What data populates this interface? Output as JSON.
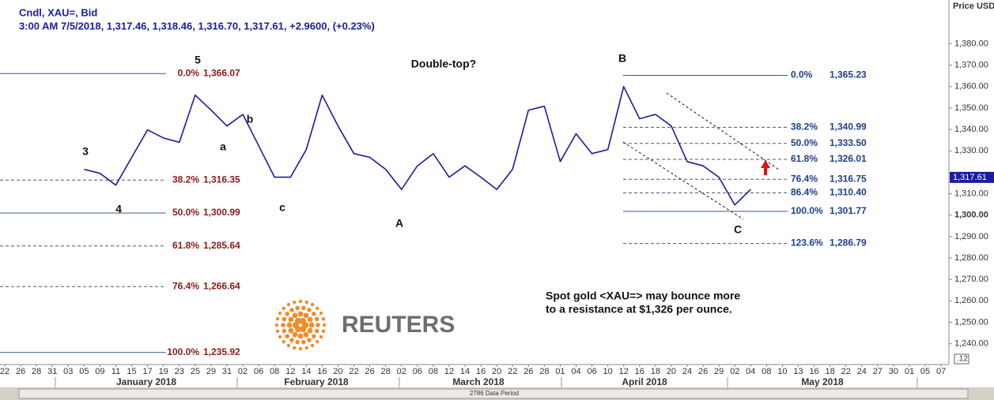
{
  "chart_data": {
    "type": "line",
    "title": "Cndl, XAU=, Bid",
    "subtitle": "3:00 AM 7/5/2018, 1,317.46, 1,318.46, 1,316.70, 1,317.61, +2.9600, (+0.23%)",
    "y_label": "Price USD Ozs",
    "categories": [
      "22",
      "26",
      "28",
      "31",
      "03",
      "05",
      "09",
      "11",
      "15",
      "17",
      "19",
      "23",
      "25",
      "29",
      "31",
      "02",
      "06",
      "08",
      "12",
      "14",
      "16",
      "20",
      "22",
      "26",
      "28",
      "02",
      "06",
      "08",
      "12",
      "14",
      "16",
      "20",
      "22",
      "26",
      "28",
      "01",
      "04",
      "06",
      "10",
      "12",
      "16",
      "18",
      "20",
      "24",
      "26",
      "29",
      "02",
      "04",
      "08",
      "10",
      "13",
      "16",
      "18",
      "22",
      "24",
      "27",
      "30",
      "01",
      "05",
      "07"
    ],
    "months": [
      "January 2018",
      "February 2018",
      "March 2018",
      "April 2018",
      "May 2018"
    ],
    "series": [
      {
        "name": "XAU=",
        "color": "#1c1c9c",
        "values": [
          null,
          null,
          null,
          null,
          null,
          1321.4,
          1319.5,
          1314,
          1327,
          1339.8,
          1336,
          1334,
          1356,
          1349,
          1341.6,
          1347,
          1332.4,
          1317.7,
          1317.7,
          1330.6,
          1356,
          1341.6,
          1328.7,
          1327,
          1321.4,
          1312,
          1323,
          1328.7,
          1317.7,
          1323,
          1317.7,
          1312,
          1321.4,
          1349,
          1350.8,
          1325,
          1338,
          1328.7,
          1330.6,
          1360,
          1345,
          1347,
          1341.6,
          1325,
          1323,
          1317.7,
          1304.8,
          1312,
          null,
          null,
          null,
          null,
          null,
          null,
          null,
          null,
          null,
          null,
          null,
          null
        ]
      }
    ],
    "ylim": [
      1230.3,
      1400.4
    ],
    "yticks": [
      {
        "value": 1380,
        "label": "1,380.00"
      },
      {
        "value": 1370,
        "label": "1,370.00"
      },
      {
        "value": 1360,
        "label": "1,360.00"
      },
      {
        "value": 1350,
        "label": "1,350.00"
      },
      {
        "value": 1340,
        "label": "1,340.00"
      },
      {
        "value": 1330,
        "label": "1,330.00"
      },
      {
        "value": 1310,
        "label": "1,310.00"
      },
      {
        "value": 1300,
        "label": "1,300.00"
      },
      {
        "value": 1290,
        "label": "1,290.00"
      },
      {
        "value": 1280,
        "label": "1,280.00"
      },
      {
        "value": 1270,
        "label": "1,270.00"
      },
      {
        "value": 1260,
        "label": "1,260.00"
      },
      {
        "value": 1250,
        "label": "1,250.00"
      },
      {
        "value": 1240,
        "label": "1,240.00"
      }
    ],
    "last_price": {
      "value": 1317.61,
      "label": "1,317.61"
    },
    "fib_left": [
      {
        "ratio": "0.0%",
        "value": 1366.07,
        "label": "1,366.07"
      },
      {
        "ratio": "38.2%",
        "value": 1316.35,
        "label": "1,316.35"
      },
      {
        "ratio": "50.0%",
        "value": 1300.99,
        "label": "1,300.99"
      },
      {
        "ratio": "61.8%",
        "value": 1285.64,
        "label": "1,285.64"
      },
      {
        "ratio": "76.4%",
        "value": 1266.64,
        "label": "1,266.64"
      },
      {
        "ratio": "100.0%",
        "value": 1235.92,
        "label": "1,235.92"
      }
    ],
    "fib_right": [
      {
        "ratio": "0.0%",
        "value": 1365.23,
        "label": "1,365.23"
      },
      {
        "ratio": "38.2%",
        "value": 1340.99,
        "label": "1,340.99"
      },
      {
        "ratio": "50.0%",
        "value": 1333.5,
        "label": "1,333.50"
      },
      {
        "ratio": "61.8%",
        "value": 1326.01,
        "label": "1,326.01"
      },
      {
        "ratio": "76.4%",
        "value": 1316.75,
        "label": "1,316.75"
      },
      {
        "ratio": "86.4%",
        "value": 1310.4,
        "label": "1,310.40"
      },
      {
        "ratio": "100.0%",
        "value": 1301.77,
        "label": "1,301.77"
      },
      {
        "ratio": "123.6%",
        "value": 1286.79,
        "label": "1,286.79"
      }
    ],
    "annotations": [
      "5",
      "3",
      "4",
      "a",
      "b",
      "c",
      "A",
      "B",
      "C",
      "Double-top?"
    ],
    "note": [
      "Spot gold <XAU=> may bounce more",
      "to a resistance at $1,326 per ounce."
    ],
    "logo": "REUTERS",
    "scrollbar_label": "2786 Data Period",
    "corner_label": ".12"
  }
}
